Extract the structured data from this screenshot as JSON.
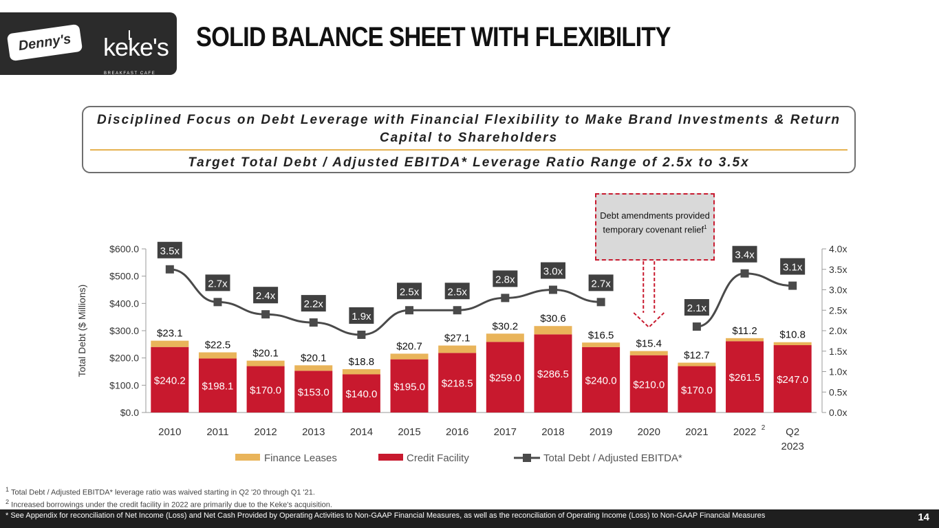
{
  "logos": {
    "dennys": "Denny's",
    "kekes": "keke's",
    "kekes_sub": "BREAKFAST CAFE"
  },
  "title": "SOLID BALANCE SHEET WITH FLEXIBILITY",
  "banner": {
    "line1": "Disciplined Focus on Debt Leverage with Financial Flexibility to Make Brand Investments & Return Capital to Shareholders",
    "line2": "Target Total Debt / Adjusted EBITDA* Leverage Ratio Range of 2.5x to 3.5x"
  },
  "callout": {
    "text": "Debt amendments provided temporary covenant relief",
    "sup": "1"
  },
  "colors": {
    "finance_leases": "#e9b45a",
    "credit_facility": "#c8192e",
    "ratio_line": "#4a4a4a",
    "label_box": "#404040"
  },
  "chart_data": {
    "type": "bar",
    "categories": [
      "2010",
      "2011",
      "2012",
      "2013",
      "2014",
      "2015",
      "2016",
      "2017",
      "2018",
      "2019",
      "2020",
      "2021",
      "2022",
      "Q2 2023"
    ],
    "category_superscripts": {
      "2022": "2"
    },
    "series": [
      {
        "name": "Credit Facility",
        "values": [
          240.2,
          198.1,
          170.0,
          153.0,
          140.0,
          195.0,
          218.5,
          259.0,
          286.5,
          240.0,
          210.0,
          170.0,
          261.5,
          247.0
        ],
        "labels": [
          "$240.2",
          "$198.1",
          "$170.0",
          "$153.0",
          "$140.0",
          "$195.0",
          "$218.5",
          "$259.0",
          "$286.5",
          "$240.0",
          "$210.0",
          "$170.0",
          "$261.5",
          "$247.0"
        ]
      },
      {
        "name": "Finance Leases",
        "values": [
          23.1,
          22.5,
          20.1,
          20.1,
          18.8,
          20.7,
          27.1,
          30.2,
          30.6,
          16.5,
          15.4,
          12.7,
          11.2,
          10.8
        ],
        "labels": [
          "$23.1",
          "$22.5",
          "$20.1",
          "$20.1",
          "$18.8",
          "$20.7",
          "$27.1",
          "$30.2",
          "$30.6",
          "$16.5",
          "$15.4",
          "$12.7",
          "$11.2",
          "$10.8"
        ]
      },
      {
        "name": "Total Debt / Adjusted EBITDA*",
        "axis": "right",
        "values": [
          3.5,
          2.7,
          2.4,
          2.2,
          1.9,
          2.5,
          2.5,
          2.8,
          3.0,
          2.7,
          null,
          2.1,
          3.4,
          3.1
        ],
        "labels": [
          "3.5x",
          "2.7x",
          "2.4x",
          "2.2x",
          "1.9x",
          "2.5x",
          "2.5x",
          "2.8x",
          "3.0x",
          "2.7x",
          null,
          "2.1x",
          "3.4x",
          "3.1x"
        ]
      }
    ],
    "ylabel": "Total Debt ($ Millions)",
    "ylim": [
      0,
      600
    ],
    "y_ticks": [
      "$0.0",
      "$100.0",
      "$200.0",
      "$300.0",
      "$400.0",
      "$500.0",
      "$600.0"
    ],
    "y2lim": [
      0,
      4.0
    ],
    "y2_ticks": [
      "0.0x",
      "0.5x",
      "1.0x",
      "1.5x",
      "2.0x",
      "2.5x",
      "3.0x",
      "3.5x",
      "4.0x"
    ],
    "legend": [
      "Finance Leases",
      "Credit Facility",
      "Total Debt / Adjusted EBITDA*"
    ],
    "legend_position": "bottom"
  },
  "footnotes": {
    "note1": "Total Debt / Adjusted EBITDA* leverage ratio was waived starting in Q2 '20 through Q1 '21.",
    "note1_mark": "1",
    "note2": "Increased borrowings under the credit facility in 2022 are primarily due to the Keke's acquisition.",
    "note2_mark": "2",
    "note3": "* See Appendix for reconciliation of Net Income (Loss) and Net Cash Provided by Operating Activities to Non-GAAP Financial Measures, as well as the reconciliation of Operating Income (Loss) to Non-GAAP Financial Measures"
  },
  "page_number": "14"
}
